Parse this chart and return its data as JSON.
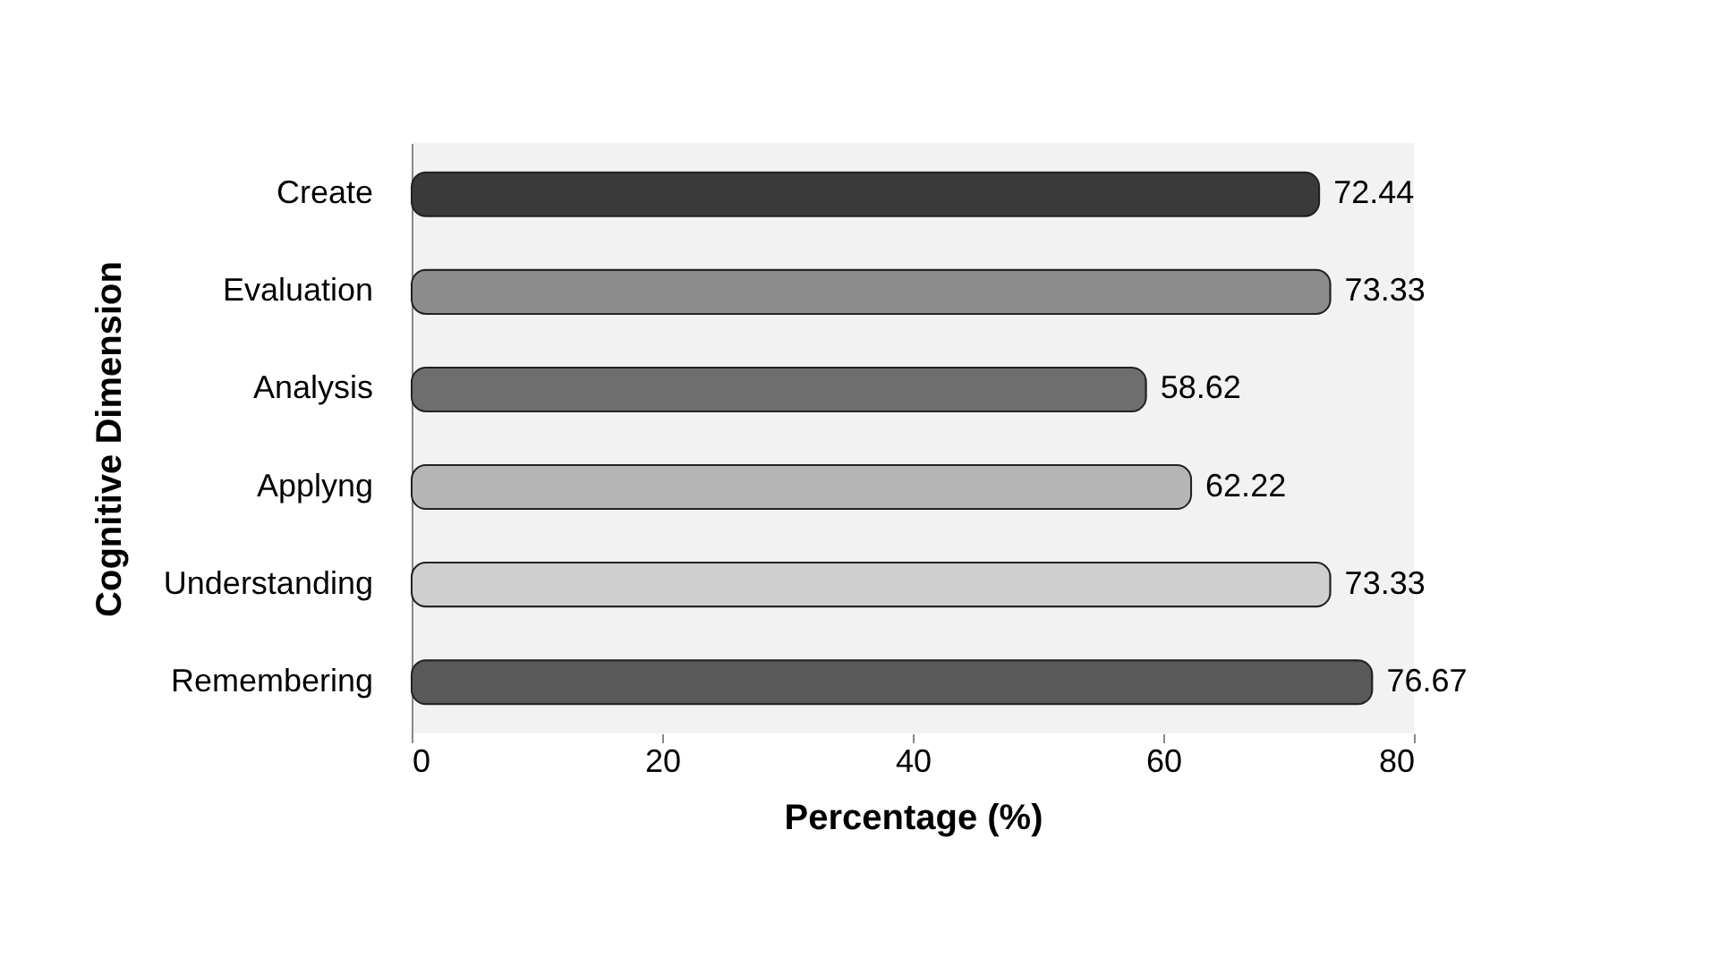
{
  "chart_data": {
    "type": "bar",
    "orientation": "horizontal",
    "xlabel": "Percentage (%)",
    "ylabel": "Cognitive Dimension",
    "categories": [
      "Create",
      "Evaluation",
      "Analysis",
      "Applyng",
      "Understanding",
      "Remembering"
    ],
    "values": [
      72.44,
      73.33,
      58.62,
      62.22,
      73.33,
      76.67
    ],
    "colors": [
      "#3a3a3a",
      "#8c8c8c",
      "#6e6e6e",
      "#b5b5b5",
      "#cfcfcf",
      "#595959"
    ],
    "xlim": [
      0,
      80
    ],
    "xticks": [
      0,
      20,
      40,
      60,
      80
    ],
    "data_labels": true
  }
}
